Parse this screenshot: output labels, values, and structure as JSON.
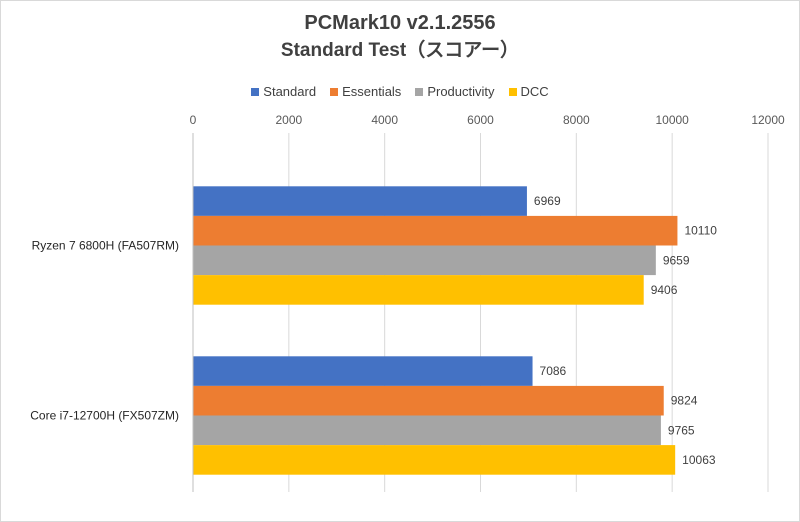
{
  "chart_data": {
    "type": "bar",
    "orientation": "horizontal",
    "title": "PCMark10 v2.1.2556",
    "subtitle": "Standard Test（スコアー）",
    "categories": [
      "Ryzen 7 6800H (FA507RM)",
      "Core i7-12700H (FX507ZM)"
    ],
    "series": [
      {
        "name": "Standard",
        "color": "#4472c4",
        "values": [
          6969,
          7086
        ]
      },
      {
        "name": "Essentials",
        "color": "#ed7d31",
        "values": [
          10110,
          9824
        ]
      },
      {
        "name": "Productivity",
        "color": "#a5a5a5",
        "values": [
          9659,
          9765
        ]
      },
      {
        "name": "DCC",
        "color": "#ffc000",
        "values": [
          9406,
          10063
        ]
      }
    ],
    "xlim": [
      0,
      12000
    ],
    "xticks": [
      "0",
      "2000",
      "4000",
      "6000",
      "8000",
      "10000",
      "12000"
    ],
    "grid": true,
    "legend_position": "top",
    "data_labels": true
  }
}
